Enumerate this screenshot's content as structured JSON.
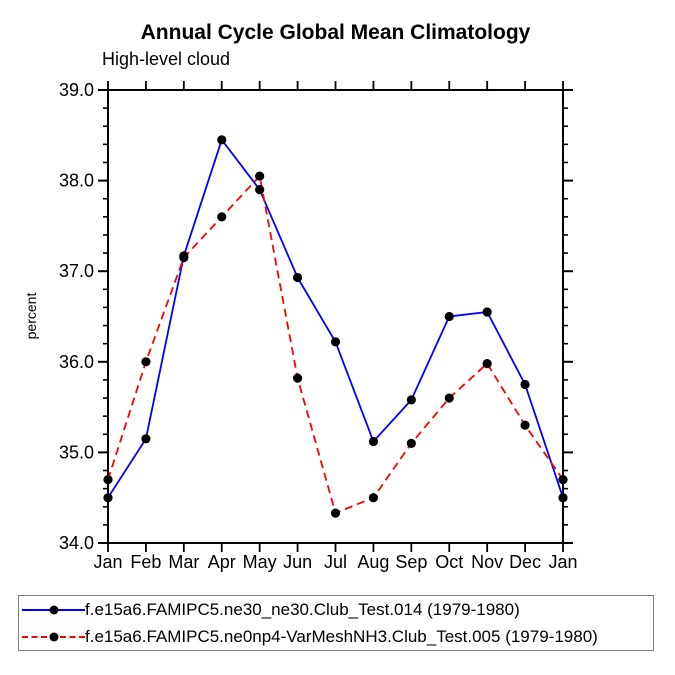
{
  "title": "Annual Cycle Global Mean Climatology",
  "subtitle": "High-level cloud",
  "y_axis_title": "percent",
  "colors": {
    "series1": "#0000ff",
    "series2": "#ff0000",
    "marker": "#000000",
    "axis": "#000000",
    "legend_border": "#808080"
  },
  "legend": {
    "items": [
      {
        "label": "f.e15a6.FAMIPC5.ne30_ne30.Club_Test.014 (1979-1980)",
        "style": "solid",
        "color": "#0000ff"
      },
      {
        "label": "f.e15a6.FAMIPC5.ne0np4-VarMeshNH3.Club_Test.005 (1979-1980)",
        "style": "dashed",
        "color": "#ff0000"
      }
    ]
  },
  "chart_data": {
    "type": "line",
    "title": "Annual Cycle Global Mean Climatology",
    "subtitle": "High-level cloud",
    "ylabel": "percent",
    "xlabel": "",
    "categories": [
      "Jan",
      "Feb",
      "Mar",
      "Apr",
      "May",
      "Jun",
      "Jul",
      "Aug",
      "Sep",
      "Oct",
      "Nov",
      "Dec",
      "Jan"
    ],
    "series": [
      {
        "name": "f.e15a6.FAMIPC5.ne30_ne30.Club_Test.014 (1979-1980)",
        "color": "#0000ff",
        "style": "solid",
        "marker": "filled-circle",
        "values": [
          34.5,
          35.15,
          37.17,
          38.45,
          37.9,
          36.93,
          36.22,
          35.12,
          35.58,
          36.5,
          36.55,
          35.75,
          34.5
        ]
      },
      {
        "name": "f.e15a6.FAMIPC5.ne0np4-VarMeshNH3.Club_Test.005 (1979-1980)",
        "color": "#ff0000",
        "style": "dashed",
        "marker": "filled-circle",
        "values": [
          34.7,
          36.0,
          37.15,
          37.6,
          38.05,
          35.82,
          34.33,
          34.5,
          35.1,
          35.6,
          35.98,
          35.3,
          34.7
        ]
      }
    ],
    "ylim": [
      34.0,
      39.0
    ],
    "y_major_step": 1.0,
    "y_minor_step": 0.2,
    "y_tick_labels": [
      "34.0",
      "35.0",
      "36.0",
      "37.0",
      "38.0",
      "39.0"
    ],
    "grid": false,
    "legend_position": "bottom"
  }
}
